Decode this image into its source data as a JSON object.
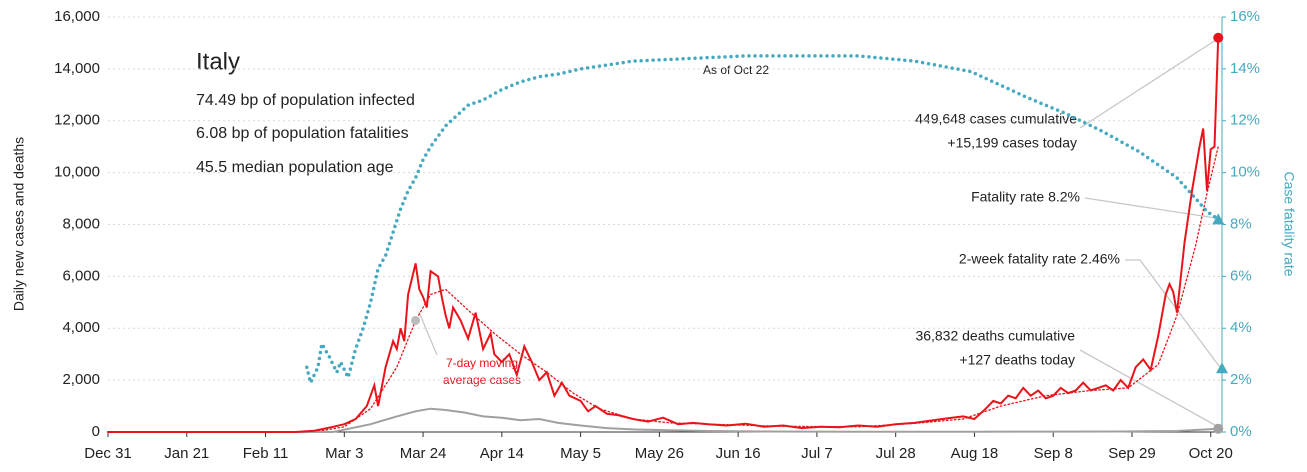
{
  "chart_data": {
    "type": "line",
    "title": "Italy",
    "info": [
      "74.49 bp of population infected",
      "6.08 bp of population fatalities",
      "45.5 median population age"
    ],
    "ylabel": "Daily new cases and deaths",
    "y2label": "Case fatality rate",
    "xlim": [
      0,
      297
    ],
    "xticks": [
      {
        "value": 0,
        "label": "Dec 31"
      },
      {
        "value": 21,
        "label": "Jan 21"
      },
      {
        "value": 42,
        "label": "Feb 11"
      },
      {
        "value": 63,
        "label": "Mar 3"
      },
      {
        "value": 84,
        "label": "Mar 24"
      },
      {
        "value": 105,
        "label": "Apr 14"
      },
      {
        "value": 126,
        "label": "May 5"
      },
      {
        "value": 147,
        "label": "May 26"
      },
      {
        "value": 168,
        "label": "Jun 16"
      },
      {
        "value": 189,
        "label": "Jul 7"
      },
      {
        "value": 210,
        "label": "Jul 28"
      },
      {
        "value": 231,
        "label": "Aug 18"
      },
      {
        "value": 252,
        "label": "Sep 8"
      },
      {
        "value": 273,
        "label": "Sep 29"
      },
      {
        "value": 294,
        "label": "Oct 20"
      }
    ],
    "ylim": [
      0,
      16000
    ],
    "yticks": [
      0,
      {
        "value": 2000,
        "label": "2,000"
      },
      {
        "value": 4000,
        "label": "4,000"
      },
      {
        "value": 6000,
        "label": "6,000"
      },
      {
        "value": 8000,
        "label": "8,000"
      },
      {
        "value": 10000,
        "label": "10,000"
      },
      {
        "value": 12000,
        "label": "12,000"
      },
      {
        "value": 14000,
        "label": "14,000"
      },
      {
        "value": 16000,
        "label": "16,000"
      }
    ],
    "y2lim": [
      0,
      16
    ],
    "y2ticks": [
      {
        "value": 0,
        "label": "0%"
      },
      {
        "value": 2,
        "label": "2%"
      },
      {
        "value": 4,
        "label": "4%"
      },
      {
        "value": 6,
        "label": "6%"
      },
      {
        "value": 8,
        "label": "8%"
      },
      {
        "value": 10,
        "label": "10%"
      },
      {
        "value": 12,
        "label": "12%"
      },
      {
        "value": 14,
        "label": "14%"
      },
      {
        "value": 16,
        "label": "16%"
      }
    ],
    "grid": true,
    "series": [
      {
        "name": "Case fatality rate",
        "color": "#45a9c0",
        "style": "dotted",
        "axis": "y2",
        "x": [
          53,
          54,
          56,
          57,
          59,
          61,
          62,
          64,
          66,
          68,
          70,
          72,
          74,
          76,
          78,
          80,
          82,
          84,
          86,
          88,
          90,
          93,
          96,
          100,
          105,
          110,
          115,
          120,
          126,
          140,
          155,
          170,
          185,
          200,
          215,
          230,
          245,
          255,
          265,
          275,
          285,
          290,
          293,
          296
        ],
        "values": [
          2.5,
          1.9,
          2.5,
          3.4,
          2.9,
          2.3,
          2.7,
          2.1,
          3.2,
          4.0,
          5.0,
          6.3,
          6.8,
          7.7,
          8.6,
          9.3,
          9.8,
          10.5,
          11.0,
          11.4,
          11.8,
          12.2,
          12.6,
          12.8,
          13.2,
          13.5,
          13.7,
          13.8,
          14.0,
          14.3,
          14.4,
          14.5,
          14.5,
          14.5,
          14.3,
          13.9,
          12.9,
          12.3,
          11.6,
          10.8,
          9.8,
          9.0,
          8.5,
          8.2
        ]
      },
      {
        "name": "7-day moving average cases",
        "color": "#e8141a",
        "style": "dotted",
        "x": [
          55,
          63,
          70,
          77,
          82,
          86,
          90,
          96,
          103,
          110,
          117,
          124,
          131,
          140,
          150,
          165,
          180,
          200,
          215,
          228,
          238,
          250,
          262,
          272,
          280,
          285,
          290,
          293,
          296
        ],
        "values": [
          0,
          200,
          900,
          2500,
          4300,
          5300,
          5500,
          4700,
          3800,
          3000,
          2300,
          1500,
          900,
          500,
          350,
          280,
          220,
          200,
          330,
          500,
          1000,
          1400,
          1600,
          1700,
          2600,
          4500,
          7200,
          9200,
          11000
        ]
      },
      {
        "name": "Daily new deaths",
        "color": "#a0a0a0",
        "style": "solid",
        "x": [
          0,
          60,
          70,
          77,
          82,
          86,
          90,
          95,
          100,
          105,
          110,
          115,
          120,
          126,
          133,
          140,
          150,
          160,
          175,
          200,
          230,
          250,
          270,
          285,
          296
        ],
        "values": [
          0,
          0,
          300,
          600,
          800,
          900,
          850,
          750,
          600,
          550,
          450,
          500,
          350,
          250,
          150,
          100,
          70,
          40,
          20,
          10,
          10,
          15,
          20,
          40,
          127
        ]
      },
      {
        "name": "Daily new cases",
        "color": "#e8141a",
        "style": "solid",
        "x": [
          0,
          50,
          55,
          60,
          63,
          66,
          69,
          71,
          72,
          74,
          76,
          77,
          78,
          79,
          80,
          82,
          83,
          84,
          85,
          86,
          88,
          89,
          90,
          91,
          92,
          94,
          96,
          98,
          100,
          102,
          103,
          105,
          107,
          109,
          111,
          113,
          115,
          117,
          119,
          121,
          123,
          126,
          128,
          130,
          133,
          136,
          140,
          144,
          148,
          152,
          156,
          160,
          165,
          170,
          175,
          180,
          185,
          190,
          195,
          200,
          205,
          210,
          215,
          220,
          225,
          228,
          231,
          234,
          236,
          238,
          240,
          242,
          244,
          246,
          248,
          250,
          252,
          254,
          256,
          258,
          260,
          262,
          264,
          266,
          268,
          270,
          272,
          274,
          276,
          278,
          280,
          282,
          283,
          284,
          285,
          287,
          289,
          291,
          292,
          293,
          294,
          295,
          296
        ],
        "values": [
          0,
          0,
          50,
          200,
          300,
          500,
          1000,
          1800,
          1000,
          2500,
          3500,
          3200,
          4000,
          3500,
          5300,
          6500,
          5500,
          5200,
          4800,
          6200,
          6000,
          5200,
          4500,
          4000,
          4800,
          4300,
          3600,
          4600,
          3200,
          3800,
          3000,
          2700,
          3000,
          2200,
          3300,
          2700,
          2000,
          2300,
          1400,
          1900,
          1400,
          1200,
          800,
          1000,
          700,
          650,
          500,
          400,
          550,
          300,
          350,
          300,
          250,
          320,
          200,
          250,
          150,
          200,
          180,
          250,
          200,
          300,
          350,
          450,
          550,
          600,
          500,
          900,
          1200,
          1100,
          1400,
          1300,
          1700,
          1400,
          1600,
          1300,
          1400,
          1700,
          1500,
          1600,
          1900,
          1600,
          1700,
          1800,
          1600,
          2000,
          1700,
          2500,
          2800,
          2400,
          3700,
          5300,
          5700,
          5400,
          4600,
          7300,
          9300,
          11000,
          11700,
          9300,
          10900,
          11000,
          15199
        ]
      }
    ],
    "two_week_fatality_rate": 2.46,
    "annotations": {
      "as_of": "As of Oct 22",
      "cases_cumulative": "449,648 cases cumulative",
      "cases_today": "+15,199 cases today",
      "fatality_rate": "Fatality rate 8.2%",
      "two_week": "2-week fatality rate 2.46%",
      "deaths_cumulative": "36,832 deaths cumulative",
      "deaths_today": "+127 deaths today",
      "avg_line1": "7-day moving",
      "avg_line2": "average cases"
    }
  }
}
